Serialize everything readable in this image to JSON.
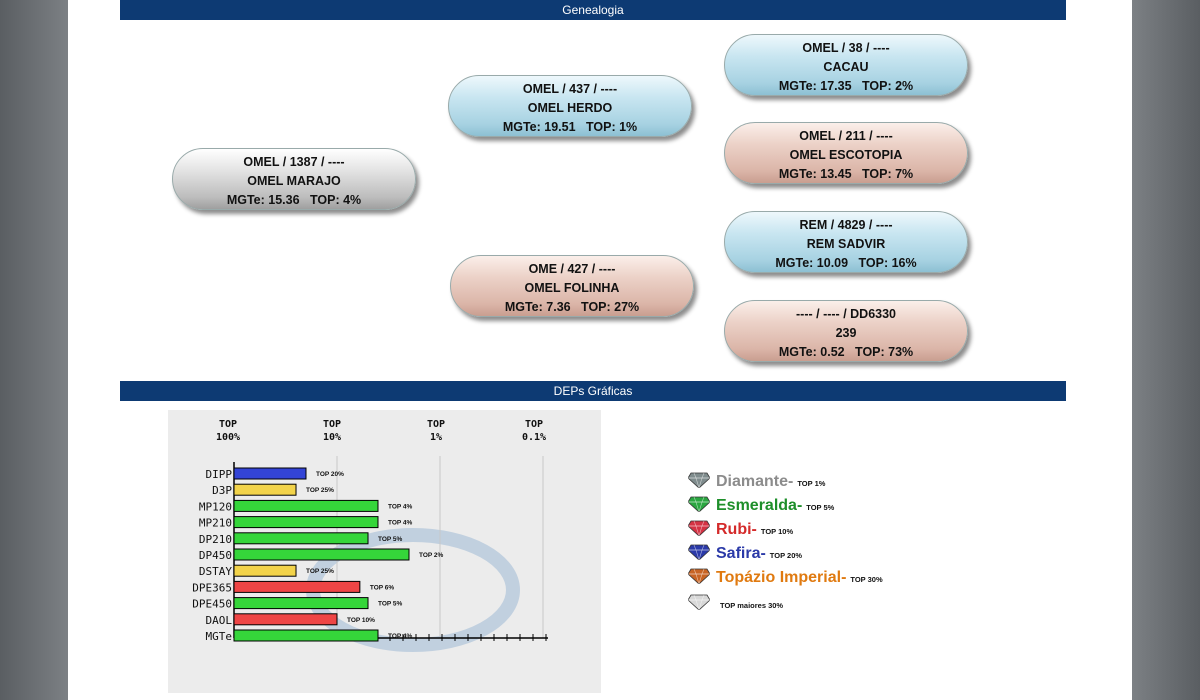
{
  "sections": {
    "genealogy": "Genealogia",
    "deps": "DEPs Gráficas"
  },
  "pedigree": {
    "animal": {
      "line1": "OMEL / 1387 / ----",
      "line2": "OMEL MARAJO",
      "mgte": "MGTe: 15.36",
      "top": "TOP: 4%"
    },
    "sire": {
      "line1": "OMEL / 437 / ----",
      "line2": "OMEL HERDO",
      "mgte": "MGTe: 19.51",
      "top": "TOP: 1%"
    },
    "dam": {
      "line1": "OME / 427 / ----",
      "line2": "OMEL FOLINHA",
      "mgte": "MGTe: 7.36",
      "top": "TOP: 27%"
    },
    "sire_sire": {
      "line1": "OMEL / 38 / ----",
      "line2": "CACAU",
      "mgte": "MGTe: 17.35",
      "top": "TOP: 2%"
    },
    "sire_dam": {
      "line1": "OMEL / 211 / ----",
      "line2": "OMEL ESCOTOPIA",
      "mgte": "MGTe: 13.45",
      "top": "TOP: 7%"
    },
    "dam_sire": {
      "line1": "REM / 4829 / ----",
      "line2": "REM SADVIR",
      "mgte": "MGTe: 10.09",
      "top": "TOP: 16%"
    },
    "dam_dam": {
      "line1": "---- / ---- / DD6330",
      "line2": "239",
      "mgte": "MGTe: 0.52",
      "top": "TOP: 73%"
    }
  },
  "chart_data": {
    "type": "bar",
    "xaxis_labels": [
      {
        "l1": "TOP",
        "l2": "100%"
      },
      {
        "l1": "TOP",
        "l2": "10%"
      },
      {
        "l1": "TOP",
        "l2": "1%"
      },
      {
        "l1": "TOP",
        "l2": "0.1%"
      }
    ],
    "bars": [
      {
        "name": "DIPP",
        "value": 20,
        "label": "TOP 20%",
        "color": "#3344d6"
      },
      {
        "name": "D3P",
        "value": 25,
        "label": "TOP 25%",
        "color": "#f2d34a"
      },
      {
        "name": "MP120",
        "value": 4,
        "label": "TOP 4%",
        "color": "#35d63a"
      },
      {
        "name": "MP210",
        "value": 4,
        "label": "TOP 4%",
        "color": "#35d63a"
      },
      {
        "name": "DP210",
        "value": 5,
        "label": "TOP 5%",
        "color": "#35d63a"
      },
      {
        "name": "DP450",
        "value": 2,
        "label": "TOP 2%",
        "color": "#35d63a"
      },
      {
        "name": "DSTAY",
        "value": 25,
        "label": "TOP 25%",
        "color": "#f2d34a"
      },
      {
        "name": "DPE365",
        "value": 6,
        "label": "TOP 6%",
        "color": "#ee4545"
      },
      {
        "name": "DPE450",
        "value": 5,
        "label": "TOP 5%",
        "color": "#35d63a"
      },
      {
        "name": "DAOL",
        "value": 10,
        "label": "TOP 10%",
        "color": "#ee4545"
      },
      {
        "name": "MGTe",
        "value": 4,
        "label": "TOP 4%",
        "color": "#35d63a"
      }
    ]
  },
  "legend": [
    {
      "name": "Diamante",
      "dash": " -",
      "top": "TOP 1%",
      "color": "#8c8c8c",
      "gem": "#7f8c8d"
    },
    {
      "name": "Esmeralda",
      "dash": " -",
      "top": "TOP 5%",
      "color": "#1e8f2a",
      "gem": "#2aa640"
    },
    {
      "name": "Rubi",
      "dash": " -",
      "top": "TOP 10%",
      "color": "#d42a2a",
      "gem": "#d43344"
    },
    {
      "name": "Safira",
      "dash": " -",
      "top": "TOP 20%",
      "color": "#2b3aa8",
      "gem": "#2b3aa8"
    },
    {
      "name": "Topázio Imperial",
      "dash": " -",
      "top": "TOP 30%",
      "color": "#e07a10",
      "gem": "#c86424"
    },
    {
      "name": "",
      "dash": "",
      "top": "TOP maiores 30%",
      "color": "#111111",
      "gem": "#d8d8d8"
    }
  ]
}
